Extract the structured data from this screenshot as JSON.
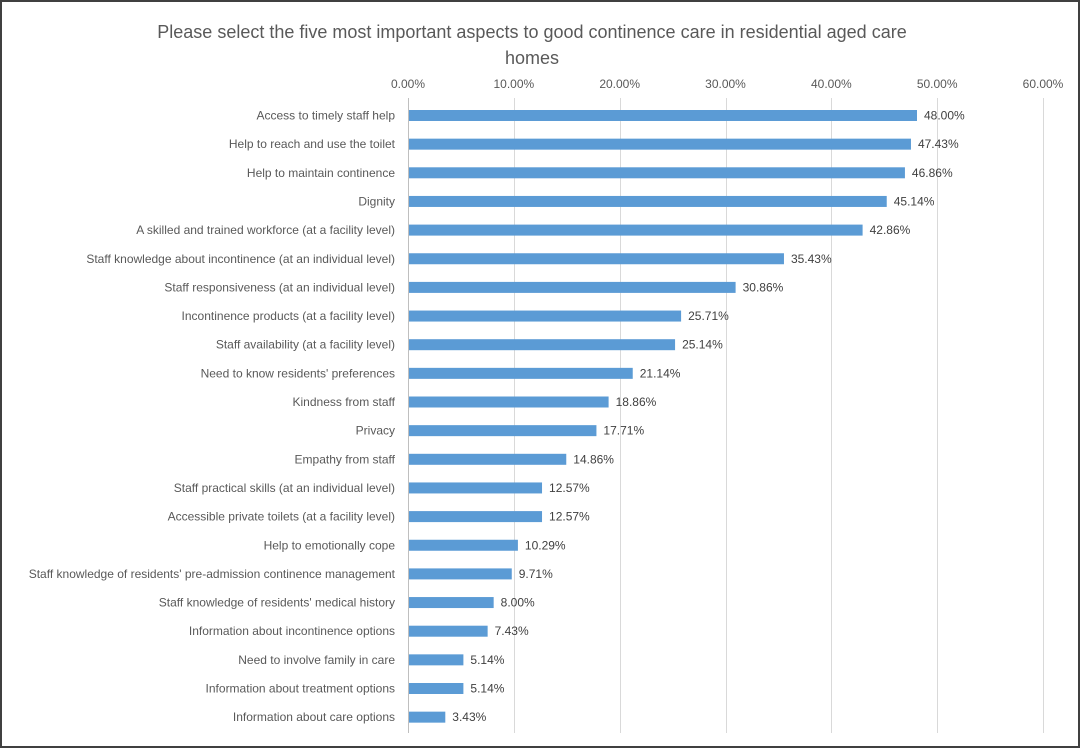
{
  "chart_data": {
    "type": "bar",
    "orientation": "horizontal",
    "title": "Please select the five most important aspects to good continence care in residential aged care homes",
    "title_lines": [
      "Please select the five most important aspects to good continence care in residential aged care",
      "homes"
    ],
    "xlabel": "",
    "ylabel": "",
    "xlim": [
      0,
      60
    ],
    "x_ticks": [
      "0.00%",
      "10.00%",
      "20.00%",
      "30.00%",
      "40.00%",
      "50.00%",
      "60.00%"
    ],
    "x_tick_values": [
      0,
      10,
      20,
      30,
      40,
      50,
      60
    ],
    "x_axis_position": "top",
    "grid": true,
    "legend": "none",
    "bar_color": "#5B9BD5",
    "categories": [
      "Access to timely staff help",
      "Help to reach and use the toilet",
      "Help to maintain continence",
      "Dignity",
      "A skilled and trained workforce (at a facility level)",
      "Staff knowledge about incontinence (at an individual level)",
      "Staff responsiveness (at an individual level)",
      "Incontinence products (at a facility level)",
      "Staff availability (at a facility level)",
      "Need to know residents' preferences",
      "Kindness from staff",
      "Privacy",
      "Empathy from staff",
      "Staff practical skills (at an individual level)",
      "Accessible private toilets (at a facility level)",
      "Help to emotionally cope",
      "Staff knowledge of residents' pre-admission continence management",
      "Staff knowledge of residents' medical history",
      "Information about incontinence options",
      "Need to involve family in care",
      "Information about treatment options",
      "Information about care options"
    ],
    "values": [
      48.0,
      47.43,
      46.86,
      45.14,
      42.86,
      35.43,
      30.86,
      25.71,
      25.14,
      21.14,
      18.86,
      17.71,
      14.86,
      12.57,
      12.57,
      10.29,
      9.71,
      8.0,
      7.43,
      5.14,
      5.14,
      3.43
    ],
    "data_labels": [
      "48.00%",
      "47.43%",
      "46.86%",
      "45.14%",
      "42.86%",
      "35.43%",
      "30.86%",
      "25.71%",
      "25.14%",
      "21.14%",
      "18.86%",
      "17.71%",
      "14.86%",
      "12.57%",
      "12.57%",
      "10.29%",
      "9.71%",
      "8.00%",
      "7.43%",
      "5.14%",
      "5.14%",
      "3.43%"
    ]
  }
}
